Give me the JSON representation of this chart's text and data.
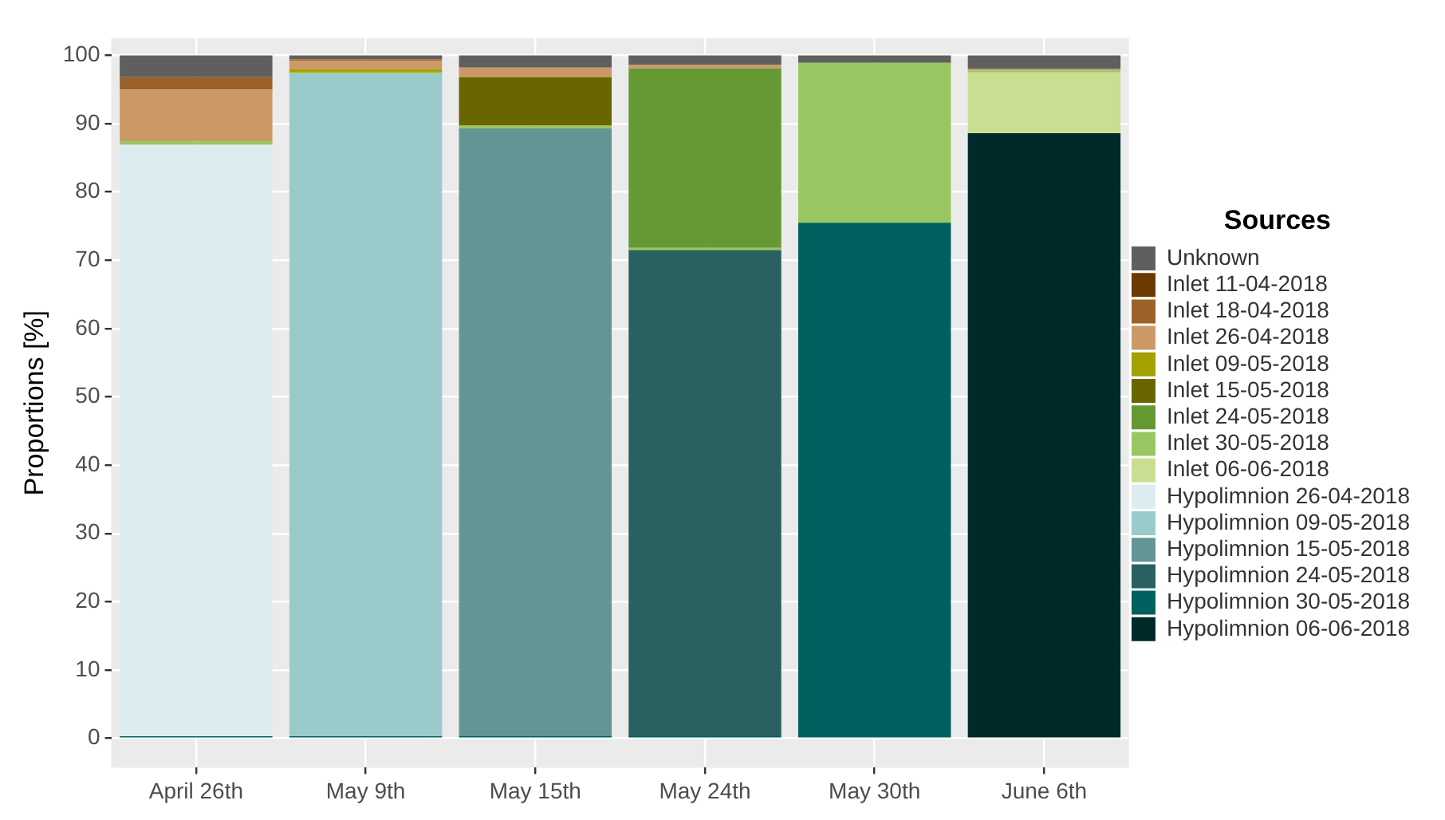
{
  "chart_data": {
    "type": "bar",
    "stacked": true,
    "ylabel": "Proportions [%]",
    "legend_title": "Sources",
    "legend": "right",
    "grid": true,
    "categories": [
      "April 26th",
      "May 9th",
      "May 15th",
      "May 24th",
      "May 30th",
      "June 6th"
    ],
    "ylim": [
      -4.3,
      102.5
    ],
    "yticks": [
      0,
      10,
      20,
      30,
      40,
      50,
      60,
      70,
      80,
      90,
      100
    ],
    "series": [
      {
        "name": "Hypolimnion 06-06-2018",
        "color": "#00292a",
        "values": [
          0,
          0,
          0,
          0,
          0,
          88.6
        ]
      },
      {
        "name": "Hypolimnion 30-05-2018",
        "color": "#006060",
        "values": [
          0.3,
          0.3,
          0.3,
          0.3,
          75.5,
          0
        ]
      },
      {
        "name": "Hypolimnion 24-05-2018",
        "color": "#296060",
        "values": [
          0,
          0,
          0,
          71.2,
          0,
          0
        ]
      },
      {
        "name": "Hypolimnion 15-05-2018",
        "color": "#639595",
        "values": [
          0,
          0,
          89.0,
          0,
          0,
          0
        ]
      },
      {
        "name": "Hypolimnion 09-05-2018",
        "color": "#99cbcb",
        "values": [
          0,
          97.0,
          0,
          0,
          0,
          0
        ]
      },
      {
        "name": "Hypolimnion 26-04-2018",
        "color": "#dcedf0",
        "values": [
          86.6,
          0,
          0,
          0,
          0,
          0
        ]
      },
      {
        "name": "Inlet 06-06-2018",
        "color": "#c9de90",
        "values": [
          0,
          0,
          0,
          0,
          0,
          8.9
        ]
      },
      {
        "name": "Inlet 30-05-2018",
        "color": "#99c660",
        "values": [
          0.5,
          0.2,
          0.4,
          0.3,
          23.4,
          0.3
        ]
      },
      {
        "name": "Inlet 24-05-2018",
        "color": "#669933",
        "values": [
          0,
          0,
          0,
          26.3,
          0,
          0
        ]
      },
      {
        "name": "Inlet 15-05-2018",
        "color": "#696600",
        "values": [
          0,
          0,
          7.1,
          0,
          0,
          0
        ]
      },
      {
        "name": "Inlet 09-05-2018",
        "color": "#a3a000",
        "values": [
          0,
          0.5,
          0,
          0,
          0,
          0
        ]
      },
      {
        "name": "Inlet 26-04-2018",
        "color": "#cc9966",
        "values": [
          7.6,
          1.2,
          1.4,
          0.5,
          0,
          0.2
        ]
      },
      {
        "name": "Inlet 18-04-2018",
        "color": "#9a6228",
        "values": [
          1.8,
          0.2,
          0,
          0,
          0,
          0
        ]
      },
      {
        "name": "Inlet 11-04-2018",
        "color": "#6b3a00",
        "values": [
          0,
          0,
          0,
          0,
          0,
          0
        ]
      },
      {
        "name": "Unknown",
        "color": "#5f5f5f",
        "values": [
          3.2,
          0.6,
          1.8,
          1.4,
          1.1,
          2.0
        ]
      }
    ]
  }
}
